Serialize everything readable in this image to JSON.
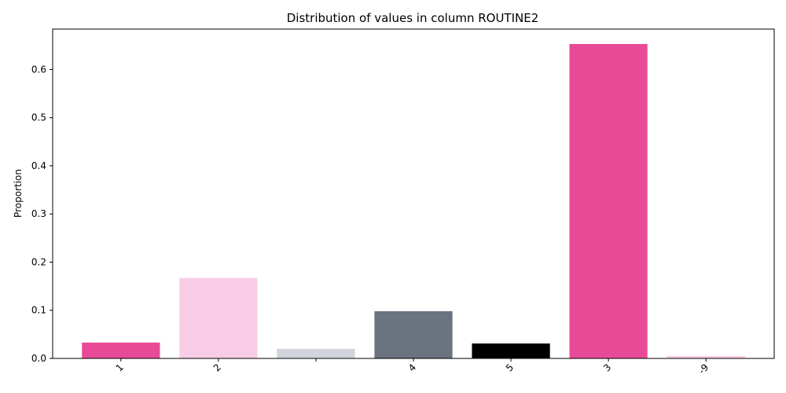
{
  "chart_data": {
    "type": "bar",
    "title": "Distribution of values in column ROUTINE2",
    "xlabel": "",
    "ylabel": "Proportion",
    "categories": [
      "1",
      "2",
      "",
      "4",
      "5",
      "3",
      "-9"
    ],
    "values": [
      0.033,
      0.167,
      0.02,
      0.098,
      0.031,
      0.653,
      0.005
    ],
    "colors": [
      "#e94a98",
      "#f9cde6",
      "#d1d5db",
      "#6b7280",
      "#000000",
      "#e94a98",
      "#f9cde6"
    ],
    "ylim": [
      0,
      0.684
    ],
    "yticks": [
      0.0,
      0.1,
      0.2,
      0.3,
      0.4,
      0.5,
      0.6
    ],
    "grid": false,
    "legend": "none"
  }
}
